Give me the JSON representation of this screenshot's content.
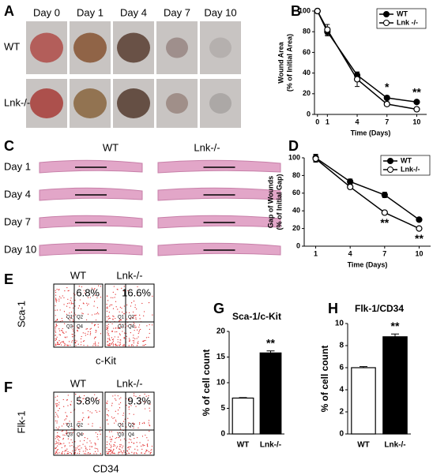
{
  "panel_labels": [
    "A",
    "B",
    "C",
    "D",
    "E",
    "F",
    "G",
    "H"
  ],
  "panel_a": {
    "columns": [
      "Day 0",
      "Day 1",
      "Day 4",
      "Day 7",
      "Day 10"
    ],
    "rows": [
      "WT",
      "Lnk-/-"
    ]
  },
  "panel_c": {
    "columns": [
      "WT",
      "Lnk-/-"
    ],
    "rows": [
      "Day 1",
      "Day 4",
      "Day 7",
      "Day 10"
    ]
  },
  "panel_e": {
    "columns": [
      "WT",
      "Lnk-/-"
    ],
    "percentages": [
      "6.8%",
      "16.6%"
    ],
    "y_label": "Sca-1",
    "x_label": "c-Kit",
    "quadrants": [
      "Q1",
      "Q2",
      "Q3",
      "Q4"
    ]
  },
  "panel_f": {
    "columns": [
      "WT",
      "Lnk-/-"
    ],
    "percentages": [
      "5.8%",
      "9.3%"
    ],
    "y_label": "Flk-1",
    "x_label": "CD34",
    "quadrants": [
      "Q1",
      "Q2",
      "Q3",
      "Q4"
    ]
  },
  "chart_data": [
    {
      "type": "line",
      "y_label": [
        "Wound Area",
        "(% of Initial Area)"
      ],
      "x_label": "Time (Days)",
      "x": [
        0,
        1,
        4,
        7,
        10
      ],
      "xlim": [
        -0.3,
        11
      ],
      "xticks": [
        0,
        1,
        4,
        7,
        10
      ],
      "ylim": [
        0,
        100
      ],
      "yticks": [
        0,
        20,
        40,
        60,
        80,
        100
      ],
      "series": [
        {
          "name": "WT",
          "color": "#000000",
          "marker_fill": "#000000",
          "values": [
            100,
            80,
            38,
            16,
            12
          ],
          "errors": [
            2,
            4,
            3,
            2,
            1
          ]
        },
        {
          "name": "Lnk -/-",
          "color": "#000000",
          "marker_fill": "#ffffff",
          "values": [
            100,
            82,
            34,
            10,
            5
          ],
          "errors": [
            2,
            5,
            7,
            2,
            1.5
          ]
        }
      ],
      "annotations": [
        {
          "text": "*",
          "x": 7
        },
        {
          "text": "**",
          "x": 10
        }
      ],
      "legend": "upper right"
    },
    {
      "type": "line",
      "y_label": [
        "Gap of Wounds",
        "(% of Initial Gap)"
      ],
      "x_label": "Time (Days)",
      "x": [
        1,
        4,
        7,
        10
      ],
      "xlim": [
        0,
        11
      ],
      "xticks": [
        1,
        4,
        7,
        10
      ],
      "ylim": [
        0,
        100
      ],
      "yticks": [
        0,
        20,
        40,
        60,
        80,
        100
      ],
      "series": [
        {
          "name": "WT",
          "color": "#000000",
          "marker_fill": "#000000",
          "values": [
            100,
            73,
            58,
            30
          ],
          "errors": [
            4,
            3,
            3,
            2
          ]
        },
        {
          "name": "Lnk-/-",
          "color": "#000000",
          "marker_fill": "#ffffff",
          "values": [
            99,
            67,
            38,
            20
          ],
          "errors": [
            4,
            2,
            1.5,
            1.5
          ]
        }
      ],
      "annotations": [
        {
          "text": "**",
          "x": 7
        },
        {
          "text": "**",
          "x": 10
        }
      ],
      "legend": "upper right"
    },
    {
      "type": "bar",
      "title": "Sca-1/c-Kit",
      "y_label": "% of cell count",
      "categories": [
        "WT",
        "Lnk-/-"
      ],
      "values": [
        7,
        15.8
      ],
      "errors": [
        0.1,
        0.4
      ],
      "colors": [
        "#ffffff",
        "#000000"
      ],
      "ylim": [
        0,
        20
      ],
      "yticks": [
        0,
        5,
        10,
        15,
        20
      ],
      "annotations": [
        {
          "text": "**",
          "x": "Lnk-/-"
        }
      ]
    },
    {
      "type": "bar",
      "title": "Flk-1/CD34",
      "y_label": "% of cell count",
      "categories": [
        "WT",
        "Lnk-/-"
      ],
      "values": [
        6,
        8.8
      ],
      "errors": [
        0.1,
        0.25
      ],
      "colors": [
        "#ffffff",
        "#000000"
      ],
      "ylim": [
        0,
        10
      ],
      "yticks": [
        0,
        2,
        4,
        6,
        8,
        10
      ],
      "annotations": [
        {
          "text": "**",
          "x": "Lnk-/-"
        }
      ]
    }
  ]
}
